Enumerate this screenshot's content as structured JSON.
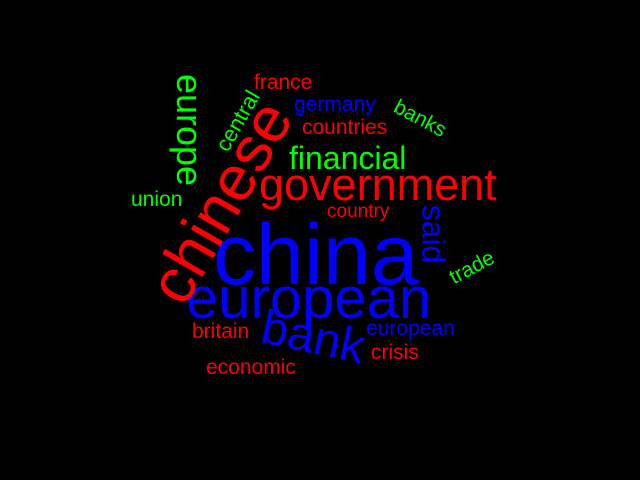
{
  "colors": {
    "background": "#000000",
    "red": "#ff0000",
    "blue": "#0000ff",
    "green": "#00ff00"
  },
  "words": {
    "china": "china",
    "european": "european",
    "government": "government",
    "chinese": "chinese",
    "bank": "bank",
    "financial": "financial",
    "europe": "europe",
    "said": "said",
    "central": "central",
    "france": "france",
    "germany": "germany",
    "countries": "countries",
    "banks": "banks",
    "union": "union",
    "country": "country",
    "trade": "trade",
    "britain": "britain",
    "european_small": "european",
    "crisis": "crisis",
    "economic": "economic"
  }
}
